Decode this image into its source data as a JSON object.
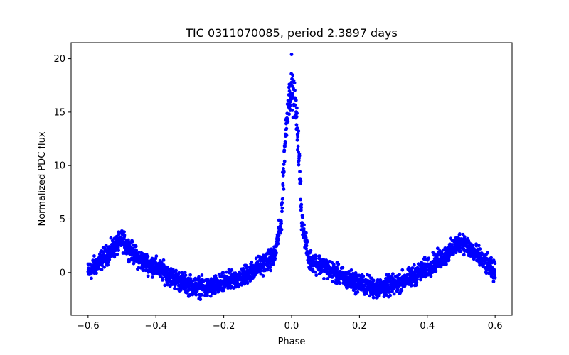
{
  "chart_data": {
    "type": "scatter",
    "title": "TIC 0311070085, period 2.3897 days",
    "xlabel": "Phase",
    "ylabel": "Normalized PDC flux",
    "xlim": [
      -0.65,
      0.65
    ],
    "ylim": [
      -4.0,
      21.5
    ],
    "xticks": [
      -0.6,
      -0.4,
      -0.2,
      0.0,
      0.2,
      0.4,
      0.6
    ],
    "xtick_labels": [
      "−0.6",
      "−0.4",
      "−0.2",
      "0.0",
      "0.2",
      "0.4",
      "0.6"
    ],
    "yticks": [
      0,
      5,
      10,
      15,
      20
    ],
    "ytick_labels": [
      "0",
      "5",
      "10",
      "15",
      "20"
    ],
    "grid": false,
    "series": [
      {
        "color": "#0000ff",
        "profile": {
          "x": [
            -0.6,
            -0.55,
            -0.5,
            -0.45,
            -0.4,
            -0.35,
            -0.3,
            -0.25,
            -0.2,
            -0.15,
            -0.1,
            -0.05,
            -0.03,
            -0.02,
            -0.01,
            0.0,
            0.01,
            0.02,
            0.03,
            0.05,
            0.1,
            0.15,
            0.2,
            0.25,
            0.3,
            0.35,
            0.4,
            0.45,
            0.5,
            0.55,
            0.6
          ],
          "y": [
            0.0,
            1.5,
            3.0,
            1.2,
            0.5,
            -0.5,
            -1.2,
            -1.5,
            -1.0,
            -0.5,
            0.5,
            1.5,
            5.0,
            12.0,
            16.0,
            17.0,
            16.0,
            12.0,
            5.0,
            1.2,
            0.5,
            -0.5,
            -1.0,
            -1.5,
            -1.2,
            -0.5,
            0.5,
            1.5,
            3.0,
            1.5,
            0.0
          ]
        },
        "scatter_half_width": 1.0,
        "outlier_points": [
          {
            "x": 0.0,
            "y": 20.4
          }
        ]
      }
    ]
  }
}
